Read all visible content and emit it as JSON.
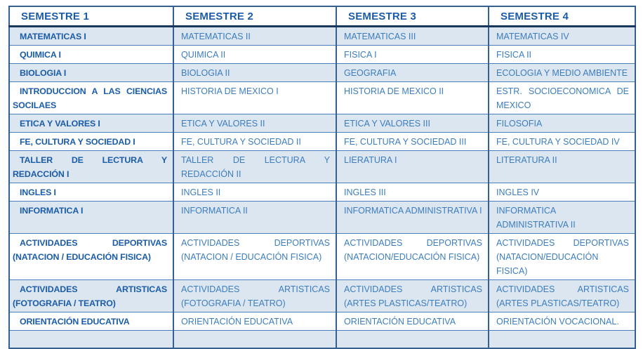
{
  "colors": {
    "stripe": "#dce6f1",
    "border_dark": "#17375d",
    "border_mid": "#366092",
    "border_light": "#4a7ebb",
    "header_text": "#1b5ca8",
    "col1_text": "#1b5ca8",
    "cell_text": "#3c7dbe",
    "page_bg": "#ffffff"
  },
  "table": {
    "headers": [
      "SEMESTRE 1",
      "SEMESTRE 2",
      "SEMESTRE 3",
      "SEMESTRE 4"
    ],
    "rows": [
      {
        "cells": [
          "MATEMATICAS I",
          "MATEMATICAS II",
          "MATEMATICAS III",
          "MATEMATICAS IV"
        ]
      },
      {
        "cells": [
          "QUIMICA I",
          "QUIMICA II",
          "FISICA I",
          "FISICA II"
        ]
      },
      {
        "cells": [
          "BIOLOGIA I",
          "BIOLOGIA II",
          "GEOGRAFIA",
          "ECOLOGIA Y MEDIO AMBIENTE"
        ]
      },
      {
        "cells": [
          "INTRODUCCION A LAS CIENCIAS SOCILAES",
          "HISTORIA DE MEXICO I",
          "HISTORIA DE MEXICO II",
          "ESTR. SOCIOECONOMICA DE MEXICO"
        ]
      },
      {
        "cells": [
          "ETICA Y VALORES I",
          "ETICA Y VALORES II",
          "ETICA Y VALORES III",
          "FILOSOFIA"
        ]
      },
      {
        "cells": [
          "FE, CULTURA Y SOCIEDAD I",
          "FE, CULTURA Y SOCIEDAD II",
          "FE, CULTURA Y SOCIEDAD III",
          "FE, CULTURA Y SOCIEDAD IV"
        ]
      },
      {
        "cells": [
          "TALLER DE LECTURA Y REDACCIÓN I",
          "TALLER DE LECTURA Y REDACCIÓN II",
          "LIERATURA I",
          "LITERATURA II"
        ]
      },
      {
        "cells": [
          "INGLES I",
          "INGLES II",
          "INGLES III",
          "INGLES IV"
        ]
      },
      {
        "cells": [
          "INFORMATICA I",
          "INFORMATICA II",
          "INFORMATICA ADMINISTRATIVA  I",
          "INFORMATICA ADMINISTRATIVA II"
        ]
      },
      {
        "cells": [
          "ACTIVIDADES DEPORTIVAS (NATACION / EDUCACIÓN FISICA)",
          "ACTIVIDADES DEPORTIVAS (NATACION / EDUCACIÓN FISICA)",
          "ACTIVIDADES DEPORTIVAS (NATACION/EDUCACIÓN FISICA)",
          "ACTIVIDADES DEPORTIVAS (NATACION/EDUCACIÓN FISICA)"
        ]
      },
      {
        "cells": [
          "ACTIVIDADES ARTISTICAS (FOTOGRAFIA / TEATRO)",
          "ACTIVIDADES ARTISTICAS (FOTOGRAFIA / TEATRO)",
          "ACTIVIDADES ARTISTICAS (ARTES PLASTICAS/TEATRO)",
          "ACTIVIDADES ARTISTICAS (ARTES PLASTICAS/TEATRO)"
        ]
      },
      {
        "cells": [
          "ORIENTACIÓN EDUCATIVA",
          "ORIENTACIÓN EDUCATIVA",
          "ORIENTACIÓN EDUCATIVA",
          "ORIENTACIÓN VOCACIONAL."
        ]
      },
      {
        "cells": [
          "",
          "",
          "",
          ""
        ]
      }
    ]
  }
}
